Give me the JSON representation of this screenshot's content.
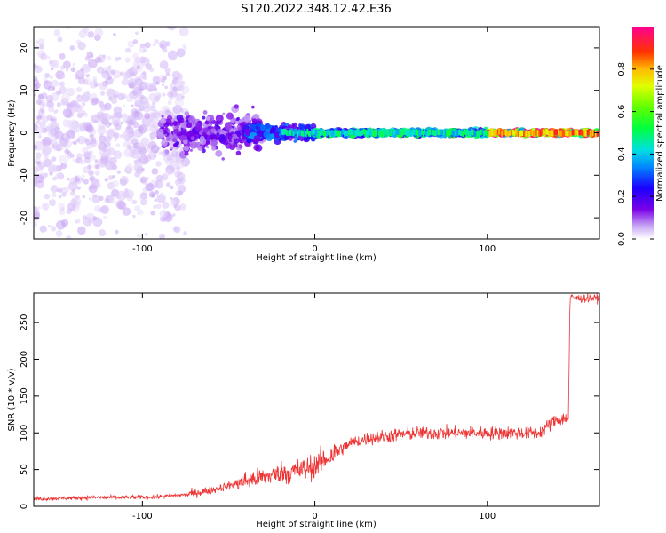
{
  "title": "S120.2022.348.12.42.E36",
  "chart_data": [
    {
      "type": "heatmap",
      "xlabel": "Height of straight line (km)",
      "ylabel": "Frequency (Hz)",
      "xlim": [
        -163,
        165
      ],
      "ylim": [
        -25,
        25
      ],
      "xticks": [
        -100,
        0,
        100
      ],
      "yticks": [
        -20,
        -10,
        0,
        10,
        20
      ],
      "colorbar": {
        "label": "Normalized spectral amplitude",
        "range": [
          0,
          1
        ],
        "ticks": [
          0.0,
          0.2,
          0.4,
          0.6,
          0.8
        ],
        "tick_labels": [
          "0.0",
          "0.2",
          "0.4",
          "0.6",
          "0.8"
        ],
        "colormap": "rainbow"
      },
      "description_bands": [
        {
          "x_range": [
            -163,
            -75
          ],
          "freq_spread": 25,
          "amplitude": 0.05
        },
        {
          "x_range": [
            -90,
            -30
          ],
          "freq_spread": 7,
          "amplitude": 0.15
        },
        {
          "x_range": [
            -40,
            0
          ],
          "freq_spread": 3,
          "amplitude": 0.3
        },
        {
          "x_range": [
            0,
            100
          ],
          "freq_spread": 1,
          "amplitude": 0.45
        },
        {
          "x_range": [
            100,
            165
          ],
          "freq_spread": 0.8,
          "amplitude": 0.85
        }
      ]
    },
    {
      "type": "line",
      "xlabel": "Height of straight line (km)",
      "ylabel": "SNR (10 * v/v)",
      "xlim": [
        -163,
        165
      ],
      "ylim": [
        0,
        290
      ],
      "xticks": [
        -100,
        0,
        100
      ],
      "yticks": [
        0,
        50,
        100,
        150,
        200,
        250
      ],
      "color": "#ee3333",
      "series": [
        {
          "x": [
            -163,
            -150,
            -130,
            -110,
            -90,
            -75,
            -60,
            -50,
            -40,
            -30,
            -20,
            -10,
            0,
            10,
            20,
            30,
            40,
            50,
            60,
            70,
            80,
            90,
            100,
            110,
            120,
            130,
            140,
            147,
            148,
            150,
            165
          ],
          "y": [
            10,
            11,
            12,
            12,
            13,
            16,
            22,
            28,
            35,
            40,
            45,
            48,
            55,
            70,
            85,
            92,
            95,
            98,
            100,
            100,
            100,
            100,
            100,
            100,
            100,
            100,
            118,
            120,
            285,
            283,
            283
          ]
        }
      ]
    }
  ]
}
